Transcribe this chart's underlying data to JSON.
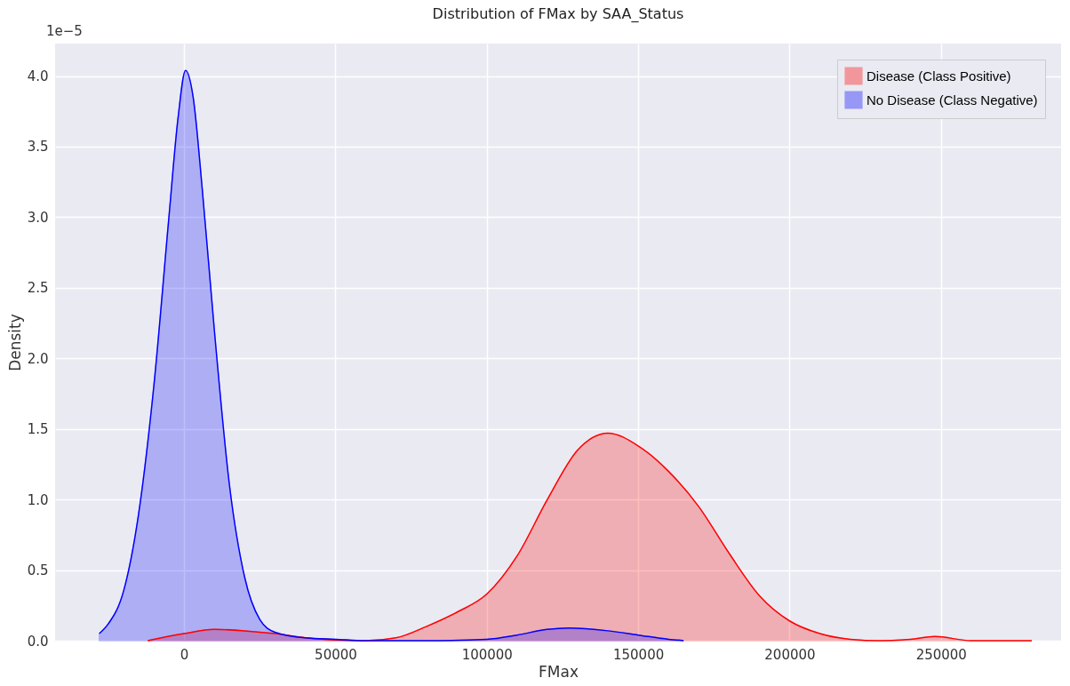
{
  "chart_data": {
    "type": "area",
    "title": "Distribution of FMax by SAA_Status",
    "xlabel": "FMax",
    "ylabel": "Density",
    "annotations": [
      "1e−5"
    ],
    "xlim": [
      -42600,
      289700
    ],
    "xticks": [
      0,
      50000,
      100000,
      150000,
      200000,
      250000
    ],
    "ylim": [
      0,
      4.23
    ],
    "yticks": [
      {
        "value": 0,
        "label": "0.0"
      },
      0.5,
      {
        "value": 1,
        "label": "1.0"
      },
      1.5,
      {
        "value": 2,
        "label": "2.0"
      },
      2.5,
      {
        "value": 3,
        "label": "3.0"
      },
      3.5,
      {
        "value": 4,
        "label": "4.0"
      }
    ],
    "grid": true,
    "legend": "top right",
    "series": [
      {
        "name": "Disease (Class Positive)",
        "color": "#ff0000",
        "x": [
          -12000,
          0,
          10000,
          20000,
          30000,
          40000,
          50000,
          60000,
          70000,
          80000,
          90000,
          100000,
          110000,
          120000,
          130000,
          140000,
          150000,
          160000,
          170000,
          180000,
          190000,
          200000,
          210000,
          220000,
          230000,
          240000,
          248000,
          260000,
          280000
        ],
        "values": [
          0.0,
          0.05,
          0.08,
          0.07,
          0.05,
          0.02,
          0.005,
          0.0,
          0.02,
          0.1,
          0.2,
          0.33,
          0.6,
          1.0,
          1.35,
          1.47,
          1.38,
          1.2,
          0.95,
          0.62,
          0.32,
          0.14,
          0.05,
          0.01,
          0.0,
          0.01,
          0.03,
          0.0,
          0.0
        ]
      },
      {
        "name": "No Disease (Class Negative)",
        "color": "#0000ff",
        "x": [
          -28000,
          -25000,
          -20000,
          -15000,
          -10000,
          -5000,
          -2000,
          500,
          3000,
          6000,
          10000,
          15000,
          20000,
          25000,
          30000,
          40000,
          50000,
          60000,
          80000,
          100000,
          110000,
          120000,
          127000,
          140000,
          150000,
          160000,
          165000
        ],
        "values": [
          0.05,
          0.12,
          0.35,
          0.9,
          1.8,
          3.0,
          3.7,
          4.04,
          3.85,
          3.2,
          2.2,
          1.1,
          0.45,
          0.15,
          0.06,
          0.02,
          0.01,
          0.0,
          0.0,
          0.01,
          0.04,
          0.08,
          0.09,
          0.07,
          0.04,
          0.01,
          0.0
        ]
      }
    ]
  }
}
